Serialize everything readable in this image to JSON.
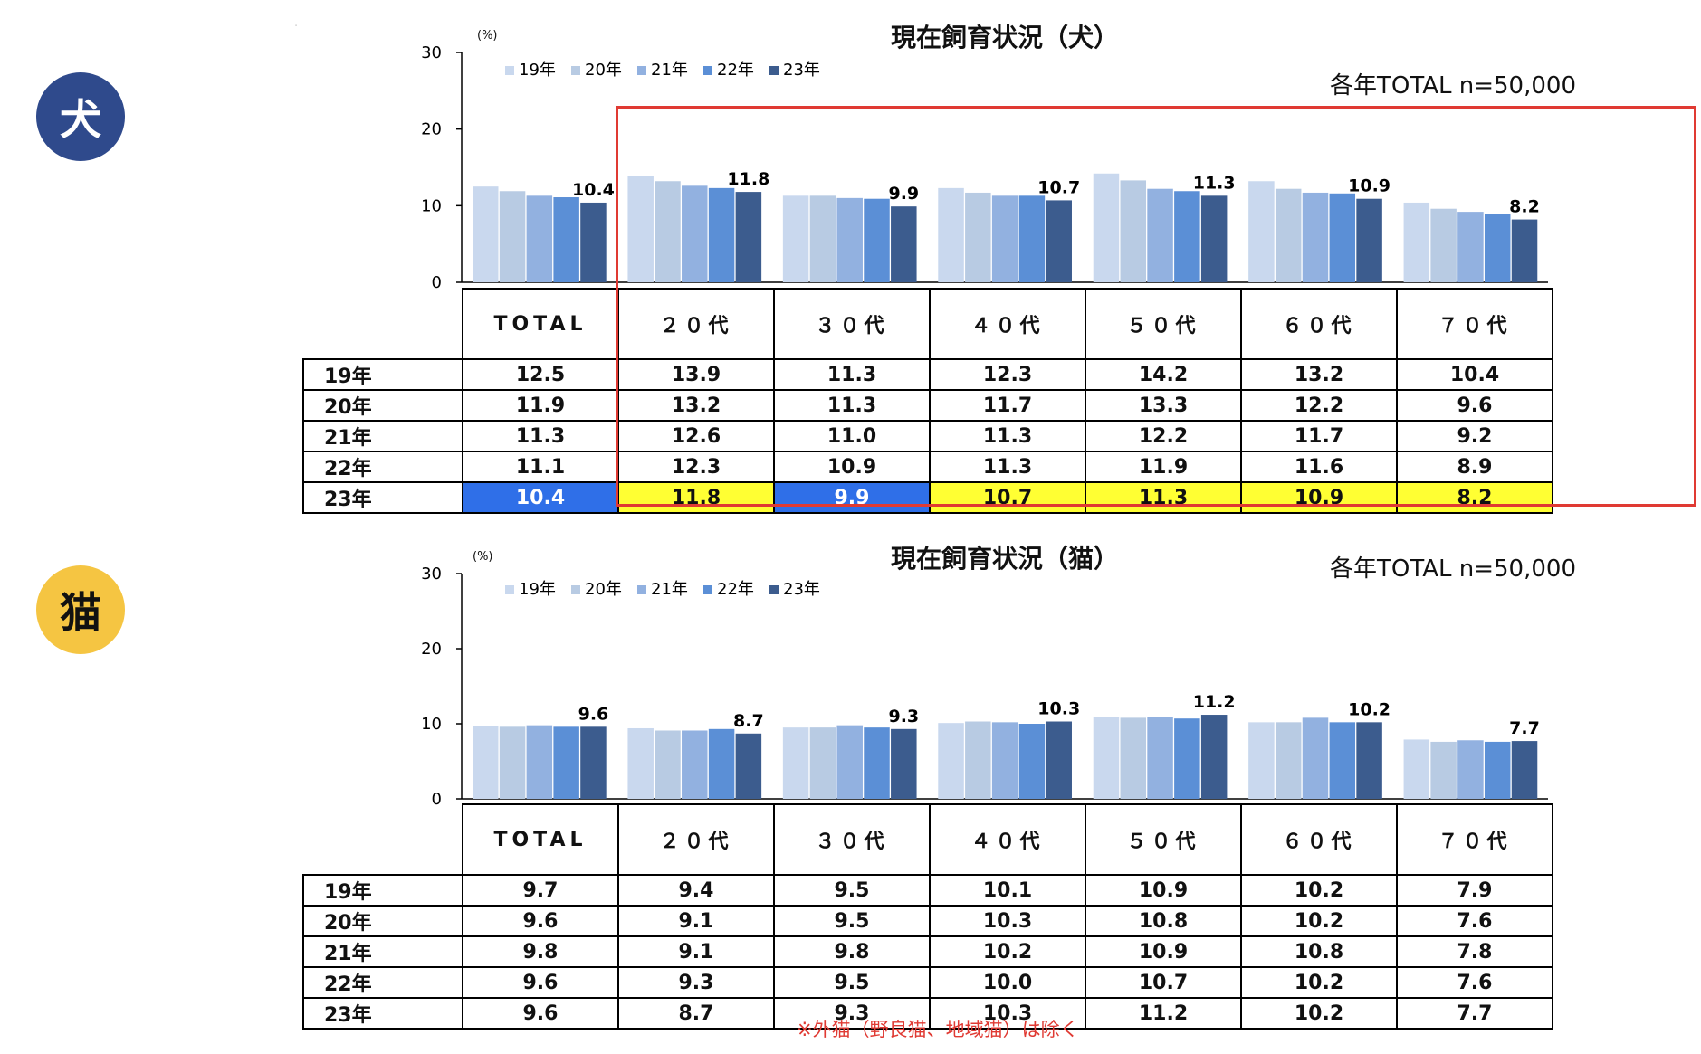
{
  "badges": {
    "dog": "犬",
    "cat": "猫"
  },
  "pct_label": "(%)",
  "charts": [
    {
      "id": "dog",
      "title": "現在飼育状況（犬）",
      "sample": "各年TOTAL n=50,000"
    },
    {
      "id": "cat",
      "title": "現在飼育状況（猫）",
      "sample": "各年TOTAL n=50,000"
    }
  ],
  "note": "※外猫（野良猫、地域猫）は除く",
  "colors": {
    "series": [
      "#c9d8ee",
      "#b8cbe3",
      "#92b1e0",
      "#5b8fd6",
      "#3c5c8e"
    ],
    "highlight_blue": "#2f6fe8",
    "highlight_yellow": "#ffff33",
    "box": "#e03a33"
  },
  "chart_data": [
    {
      "type": "bar",
      "title": "現在飼育状況（犬）",
      "subtitle": "各年TOTAL n=50,000",
      "ylabel": "(%)",
      "ylim": [
        0,
        30
      ],
      "yticks": [
        0,
        10,
        20,
        30
      ],
      "categories": [
        "TOTAL",
        "２０代",
        "３０代",
        "４０代",
        "５０代",
        "６０代",
        "７０代"
      ],
      "series": [
        {
          "name": "19年",
          "values": [
            12.5,
            13.9,
            11.3,
            12.3,
            14.2,
            13.2,
            10.4
          ]
        },
        {
          "name": "20年",
          "values": [
            11.9,
            13.2,
            11.3,
            11.7,
            13.3,
            12.2,
            9.6
          ]
        },
        {
          "name": "21年",
          "values": [
            11.3,
            12.6,
            11.0,
            11.3,
            12.2,
            11.7,
            9.2
          ]
        },
        {
          "name": "22年",
          "values": [
            11.1,
            12.3,
            10.9,
            11.3,
            11.9,
            11.6,
            8.9
          ]
        },
        {
          "name": "23年",
          "values": [
            10.4,
            11.8,
            9.9,
            10.7,
            11.3,
            10.9,
            8.2
          ]
        }
      ],
      "table_values": [
        [
          "12.5",
          "13.9",
          "11.3",
          "12.3",
          "14.2",
          "13.2",
          "10.4"
        ],
        [
          "11.9",
          "13.2",
          "11.3",
          "11.7",
          "13.3",
          "12.2",
          "9.6"
        ],
        [
          "11.3",
          "12.6",
          "11.0",
          "11.3",
          "12.2",
          "11.7",
          "9.2"
        ],
        [
          "11.1",
          "12.3",
          "10.9",
          "11.3",
          "11.9",
          "11.6",
          "8.9"
        ],
        [
          "10.4",
          "11.8",
          "9.9",
          "10.7",
          "11.3",
          "10.9",
          "8.2"
        ]
      ],
      "last_row_highlight": [
        "blue",
        "yellow",
        "blue",
        "yellow",
        "yellow",
        "yellow",
        "yellow"
      ],
      "legend_position": "top-left"
    },
    {
      "type": "bar",
      "title": "現在飼育状況（猫）",
      "subtitle": "各年TOTAL n=50,000",
      "ylabel": "(%)",
      "ylim": [
        0,
        30
      ],
      "yticks": [
        0,
        10,
        20,
        30
      ],
      "categories": [
        "TOTAL",
        "２０代",
        "３０代",
        "４０代",
        "５０代",
        "６０代",
        "７０代"
      ],
      "series": [
        {
          "name": "19年",
          "values": [
            9.7,
            9.4,
            9.5,
            10.1,
            10.9,
            10.2,
            7.9
          ]
        },
        {
          "name": "20年",
          "values": [
            9.6,
            9.1,
            9.5,
            10.3,
            10.8,
            10.2,
            7.6
          ]
        },
        {
          "name": "21年",
          "values": [
            9.8,
            9.1,
            9.8,
            10.2,
            10.9,
            10.8,
            7.8
          ]
        },
        {
          "name": "22年",
          "values": [
            9.6,
            9.3,
            9.5,
            10.0,
            10.7,
            10.2,
            7.6
          ]
        },
        {
          "name": "23年",
          "values": [
            9.6,
            8.7,
            9.3,
            10.3,
            11.2,
            10.2,
            7.7
          ]
        }
      ],
      "table_values": [
        [
          "9.7",
          "9.4",
          "9.5",
          "10.1",
          "10.9",
          "10.2",
          "7.9"
        ],
        [
          "9.6",
          "9.1",
          "9.5",
          "10.3",
          "10.8",
          "10.2",
          "7.6"
        ],
        [
          "9.8",
          "9.1",
          "9.8",
          "10.2",
          "10.9",
          "10.8",
          "7.8"
        ],
        [
          "9.6",
          "9.3",
          "9.5",
          "10.0",
          "10.7",
          "10.2",
          "7.6"
        ],
        [
          "9.6",
          "8.7",
          "9.3",
          "10.3",
          "11.2",
          "10.2",
          "7.7"
        ]
      ],
      "last_row_highlight": [],
      "legend_position": "top-left"
    }
  ]
}
